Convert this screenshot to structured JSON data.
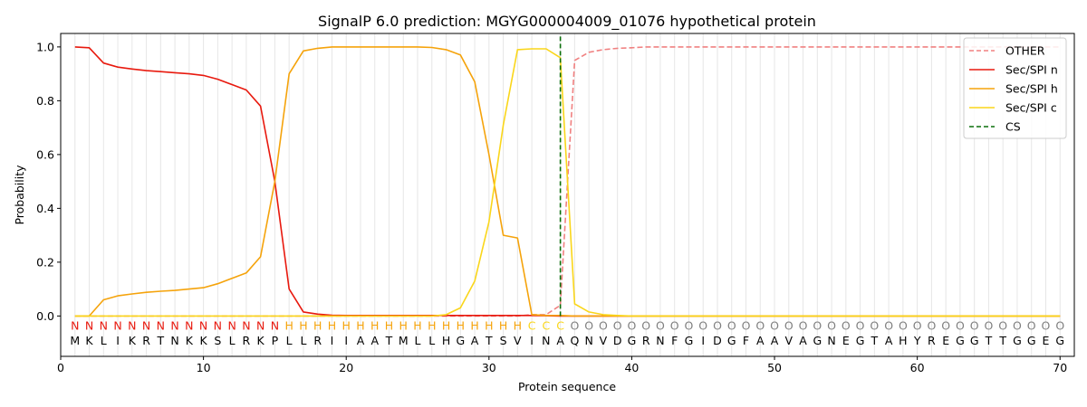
{
  "chart_data": {
    "type": "line",
    "title": "SignalP 6.0 prediction: MGYG000004009_01076 hypothetical protein",
    "xlabel": "Protein sequence",
    "ylabel": "Probability",
    "xlim": [
      0,
      71
    ],
    "ylim": [
      -0.15,
      1.05
    ],
    "xticks": [
      0,
      10,
      20,
      30,
      40,
      50,
      60,
      70
    ],
    "yticks": [
      0.0,
      0.2,
      0.4,
      0.6,
      0.8,
      1.0
    ],
    "grid": "vertical lines at each residue",
    "legend_position": "top-right",
    "colors": {
      "OTHER": "#f08080",
      "Sec/SPI n": "#e8190e",
      "Sec/SPI h": "#f5a30b",
      "Sec/SPI c": "#fad61a",
      "CS": "#0a6e0a",
      "label_O": "#808080"
    },
    "sequence": [
      "M",
      "K",
      "L",
      "I",
      "K",
      "R",
      "T",
      "N",
      "K",
      "K",
      "S",
      "L",
      "R",
      "K",
      "P",
      "L",
      "L",
      "R",
      "I",
      "I",
      "A",
      "A",
      "T",
      "M",
      "L",
      "L",
      "H",
      "G",
      "A",
      "T",
      "S",
      "V",
      "I",
      "N",
      "A",
      "Q",
      "N",
      "V",
      "D",
      "G",
      "R",
      "N",
      "F",
      "G",
      "I",
      "D",
      "G",
      "F",
      "A",
      "A",
      "V",
      "A",
      "G",
      "N",
      "E",
      "G",
      "T",
      "A",
      "H",
      "Y",
      "R",
      "E",
      "G",
      "G",
      "T",
      "T",
      "G",
      "G",
      "E",
      "G"
    ],
    "region_labels": [
      "N",
      "N",
      "N",
      "N",
      "N",
      "N",
      "N",
      "N",
      "N",
      "N",
      "N",
      "N",
      "N",
      "N",
      "N",
      "H",
      "H",
      "H",
      "H",
      "H",
      "H",
      "H",
      "H",
      "H",
      "H",
      "H",
      "H",
      "H",
      "H",
      "H",
      "H",
      "H",
      "C",
      "C",
      "C",
      "O",
      "O",
      "O",
      "O",
      "O",
      "O",
      "O",
      "O",
      "O",
      "O",
      "O",
      "O",
      "O",
      "O",
      "O",
      "O",
      "O",
      "O",
      "O",
      "O",
      "O",
      "O",
      "O",
      "O",
      "O",
      "O",
      "O",
      "O",
      "O",
      "O",
      "O",
      "O",
      "O",
      "O",
      "O"
    ],
    "x": [
      1,
      2,
      3,
      4,
      5,
      6,
      7,
      8,
      9,
      10,
      11,
      12,
      13,
      14,
      15,
      16,
      17,
      18,
      19,
      20,
      21,
      22,
      23,
      24,
      25,
      26,
      27,
      28,
      29,
      30,
      31,
      32,
      33,
      34,
      35,
      36,
      37,
      38,
      39,
      40,
      41,
      42,
      43,
      44,
      45,
      46,
      47,
      48,
      49,
      50,
      51,
      52,
      53,
      54,
      55,
      56,
      57,
      58,
      59,
      60,
      61,
      62,
      63,
      64,
      65,
      66,
      67,
      68,
      69,
      70
    ],
    "series": [
      {
        "name": "OTHER",
        "style": "dashed",
        "values": [
          0,
          0,
          0,
          0,
          0,
          0,
          0,
          0,
          0,
          0,
          0,
          0,
          0,
          0,
          0,
          0,
          0,
          0,
          0,
          0,
          0,
          0,
          0,
          0,
          0,
          0,
          0,
          0,
          0,
          0,
          0,
          0,
          0.005,
          0.005,
          0.04,
          0.95,
          0.98,
          0.99,
          0.995,
          0.997,
          1,
          1,
          1,
          1,
          1,
          1,
          1,
          1,
          1,
          1,
          1,
          1,
          1,
          1,
          1,
          1,
          1,
          1,
          1,
          1,
          1,
          1,
          1,
          1,
          1,
          1,
          1,
          1,
          1,
          1
        ]
      },
      {
        "name": "Sec/SPI n",
        "style": "solid",
        "values": [
          1.0,
          0.997,
          0.94,
          0.925,
          0.918,
          0.912,
          0.908,
          0.904,
          0.9,
          0.894,
          0.88,
          0.86,
          0.84,
          0.78,
          0.5,
          0.1,
          0.015,
          0.007,
          0.003,
          0.002,
          0.002,
          0.002,
          0.002,
          0.002,
          0.002,
          0.002,
          0.002,
          0.002,
          0.002,
          0.002,
          0.002,
          0.002,
          0.002,
          0.001,
          0,
          0,
          0,
          0,
          0,
          0,
          0,
          0,
          0,
          0,
          0,
          0,
          0,
          0,
          0,
          0,
          0,
          0,
          0,
          0,
          0,
          0,
          0,
          0,
          0,
          0,
          0,
          0,
          0,
          0,
          0,
          0,
          0,
          0,
          0,
          0
        ]
      },
      {
        "name": "Sec/SPI h",
        "style": "solid",
        "values": [
          0,
          0,
          0.06,
          0.075,
          0.082,
          0.088,
          0.092,
          0.095,
          0.1,
          0.105,
          0.12,
          0.14,
          0.16,
          0.22,
          0.5,
          0.9,
          0.985,
          0.995,
          1,
          1,
          1,
          1,
          1,
          1,
          1,
          0.998,
          0.99,
          0.97,
          0.87,
          0.6,
          0.3,
          0.29,
          0.005,
          0.002,
          0.002,
          0,
          0,
          0,
          0,
          0,
          0,
          0,
          0,
          0,
          0,
          0,
          0,
          0,
          0,
          0,
          0,
          0,
          0,
          0,
          0,
          0,
          0,
          0,
          0,
          0,
          0,
          0,
          0,
          0,
          0,
          0,
          0,
          0,
          0,
          0
        ]
      },
      {
        "name": "Sec/SPI c",
        "style": "solid",
        "values": [
          0,
          0,
          0,
          0,
          0,
          0,
          0,
          0,
          0,
          0,
          0,
          0,
          0,
          0,
          0,
          0,
          0,
          0,
          0,
          0,
          0,
          0,
          0,
          0,
          0,
          0,
          0.005,
          0.03,
          0.13,
          0.35,
          0.71,
          0.99,
          0.993,
          0.993,
          0.96,
          0.045,
          0.015,
          0.005,
          0.002,
          0,
          0,
          0,
          0,
          0,
          0,
          0,
          0,
          0,
          0,
          0,
          0,
          0,
          0,
          0,
          0,
          0,
          0,
          0,
          0,
          0,
          0,
          0,
          0,
          0,
          0,
          0,
          0,
          0,
          0,
          0
        ]
      },
      {
        "name": "CS",
        "style": "dashed-vertical",
        "x": 35
      }
    ]
  }
}
